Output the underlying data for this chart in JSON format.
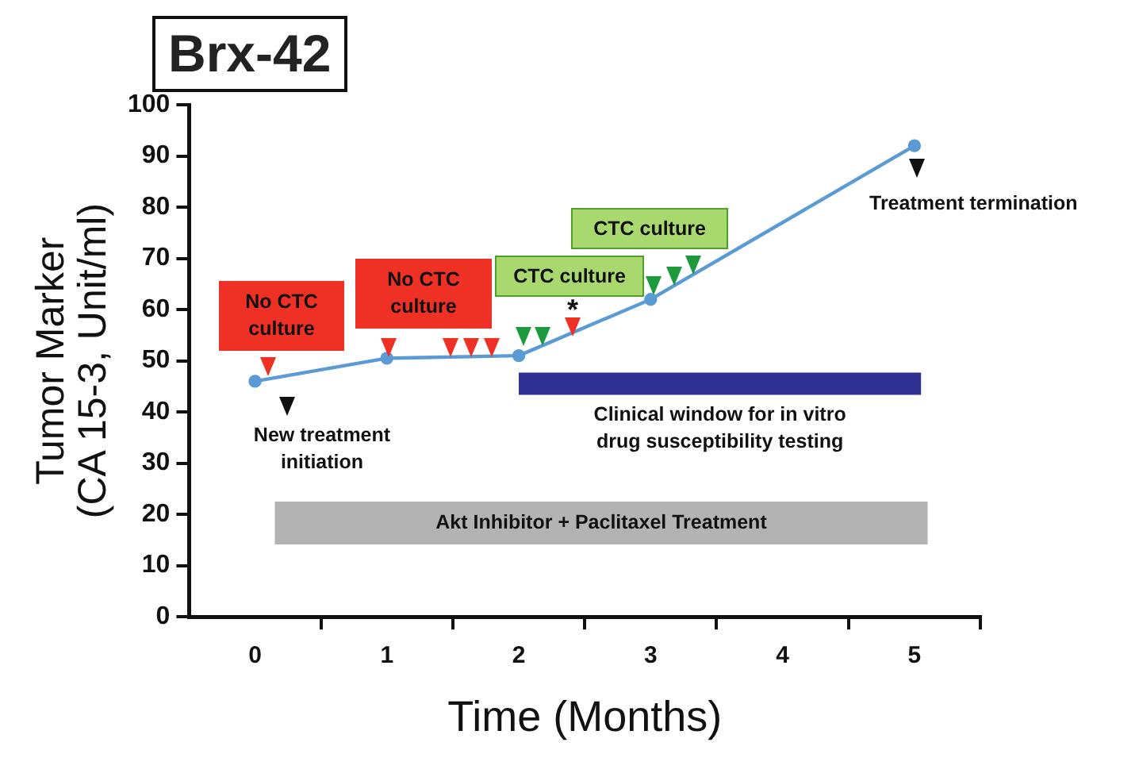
{
  "chart_data": {
    "type": "line",
    "title": "Brx-42",
    "xlabel": "Time (Months)",
    "ylabel": "Tumor Marker\n(CA 15-3, Unit/ml)",
    "x": [
      0,
      1,
      2,
      3,
      5
    ],
    "series": [
      {
        "color": "#5b9bd5",
        "values": [
          46,
          50.5,
          51,
          62,
          92
        ]
      }
    ],
    "xlim": [
      -0.5,
      5.5
    ],
    "xticks": [
      0,
      {
        "value": 0.5,
        "label": null
      },
      1,
      {
        "value": 1.5,
        "label": null
      },
      2,
      {
        "value": 2.5,
        "label": null
      },
      3,
      {
        "value": 3.5,
        "label": null
      },
      4,
      {
        "value": 4.5,
        "label": null
      },
      5,
      {
        "value": 5.5,
        "label": null
      }
    ],
    "ylim": [
      0,
      100
    ],
    "yticks": [
      0,
      10,
      20,
      30,
      40,
      50,
      60,
      70,
      80,
      90,
      100
    ],
    "grid": false,
    "legend": false,
    "marker": "circle",
    "line_style": "solid",
    "annotations": [
      "New treatment\ninitiation",
      "Treatment termination",
      "No CTC\nculture",
      "No CTC\nculture",
      "CTC culture",
      "CTC culture",
      "*"
    ],
    "bands": [
      {
        "axis": "x",
        "from": 2,
        "to": 5.05,
        "label": "Clinical window for in vitro\ndrug susceptibility testing",
        "color": "#2e3192"
      },
      {
        "axis": "x",
        "from": 0.15,
        "to": 5.1,
        "label": "Akt Inhibitor + Paclitaxel Treatment",
        "color": "#b3b3b3"
      }
    ]
  }
}
